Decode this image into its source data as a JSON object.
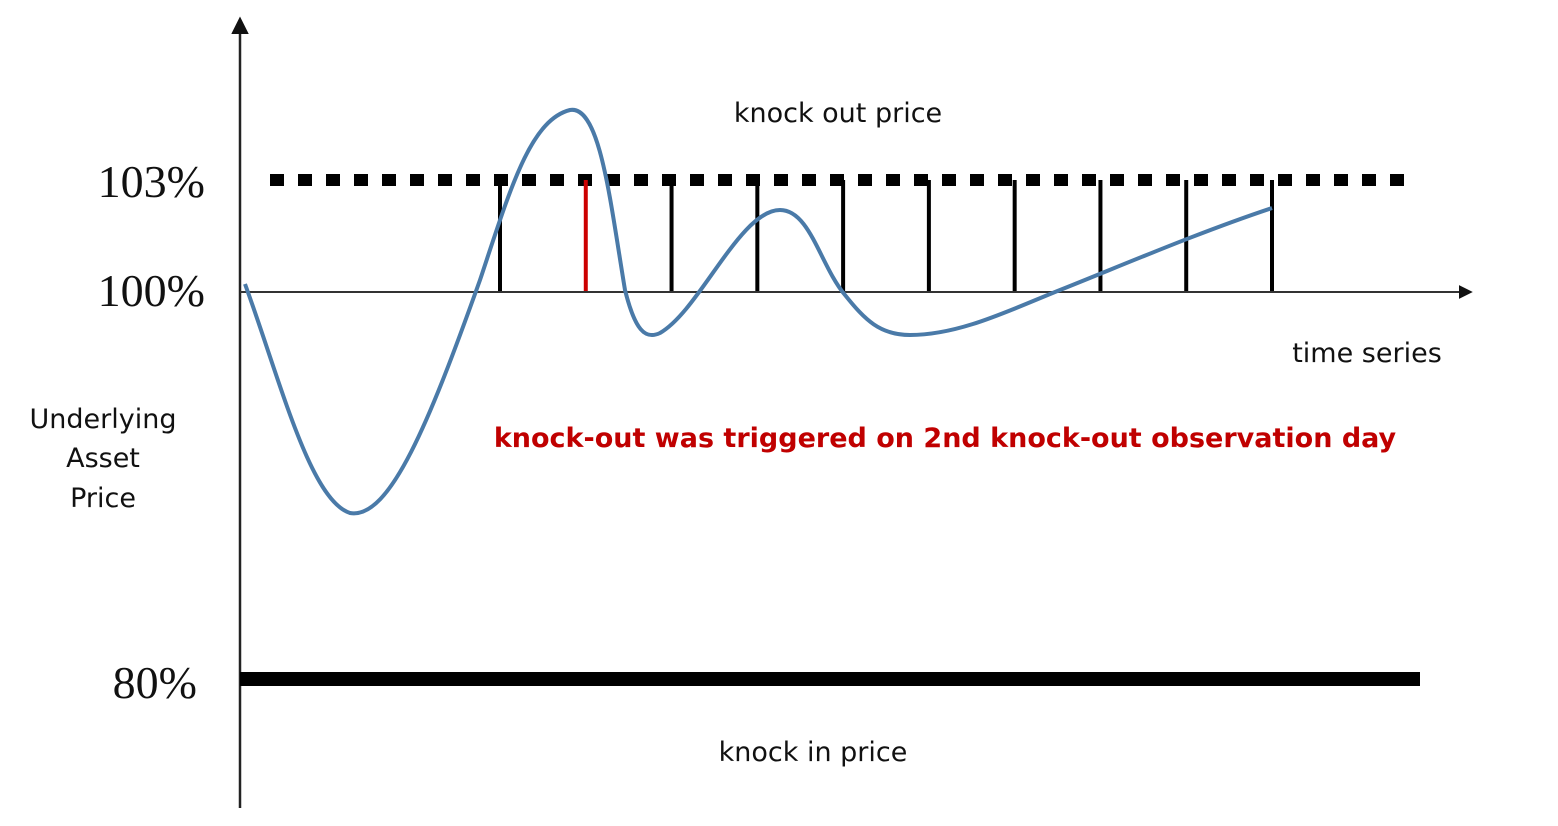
{
  "chart_data": {
    "type": "line",
    "ytick_labels": [
      "103%",
      "100%",
      "80%"
    ],
    "levels": {
      "knock_out": 103,
      "initial": 100,
      "knock_in": 80
    },
    "knock_out_label": "knock out price",
    "knock_in_label": "knock in price",
    "xlabel": "time series",
    "ylabel_lines": [
      "Underlying",
      "Asset",
      "Price"
    ],
    "annotation": "knock-out was triggered on 2nd knock-out observation day",
    "observation_days": 10,
    "triggered_observation_day": 2,
    "colors": {
      "price_line": "#4a7aa8",
      "trigger_marker": "#cc0000",
      "annotation": "#c00000",
      "axis": "#222222",
      "barrier": "#000000"
    }
  }
}
